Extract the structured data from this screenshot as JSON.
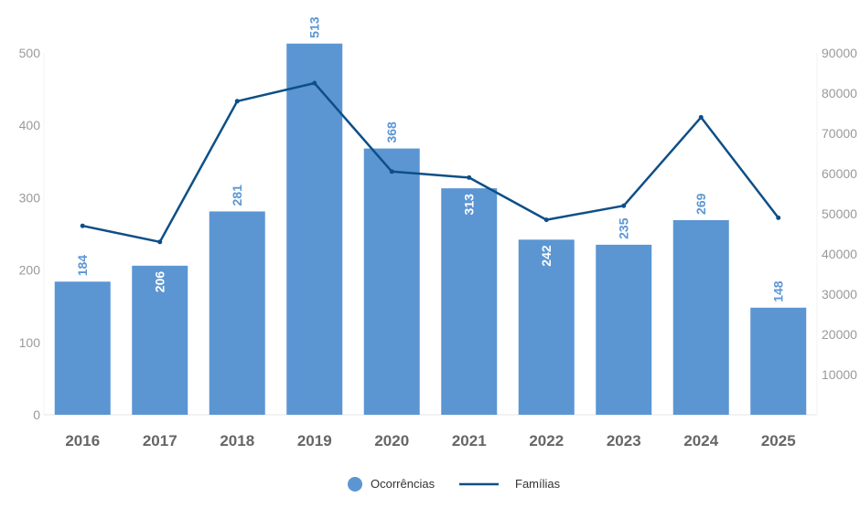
{
  "chart_data": {
    "type": "bar",
    "categories": [
      "2016",
      "2017",
      "2018",
      "2019",
      "2020",
      "2021",
      "2022",
      "2023",
      "2024",
      "2025"
    ],
    "series": [
      {
        "name": "Ocorrências",
        "type": "bar",
        "axis": "left",
        "values": [
          184,
          206,
          281,
          513,
          368,
          313,
          242,
          235,
          269,
          148
        ],
        "data_labels": [
          "184",
          "206",
          "281",
          "513",
          "368",
          "313",
          "242",
          "235",
          "269",
          "148"
        ],
        "color": "#5b96d3"
      },
      {
        "name": "Famílias",
        "type": "line",
        "axis": "right",
        "values": [
          47000,
          43000,
          78000,
          82500,
          60500,
          59000,
          48500,
          52000,
          74000,
          49000
        ],
        "color": "#0d4f87"
      }
    ],
    "y_left": {
      "lim": [
        0,
        500
      ],
      "ticks": [
        "0",
        "100",
        "200",
        "300",
        "400",
        "500"
      ]
    },
    "y_right": {
      "lim": [
        0,
        90000
      ],
      "ticks": [
        "10000",
        "20000",
        "30000",
        "40000",
        "50000",
        "60000",
        "70000",
        "80000",
        "90000"
      ]
    },
    "legend": {
      "position": "bottom",
      "items": [
        "Ocorrências",
        "Famílias"
      ]
    },
    "grid": false,
    "title": "",
    "xlabel": "",
    "ylabel": ""
  }
}
